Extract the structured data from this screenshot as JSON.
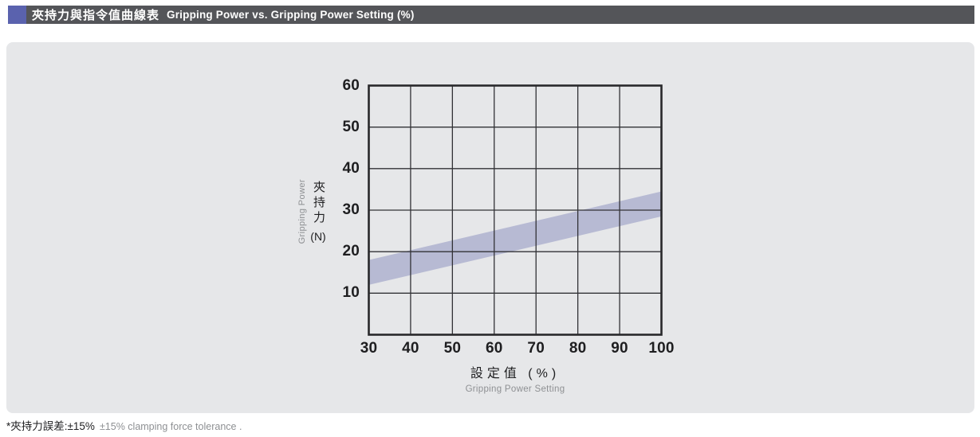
{
  "header": {
    "title_zh": "夾持力與指令值曲線表",
    "title_en": "Gripping Power vs. Gripping Power Setting (%)"
  },
  "footer": {
    "note_zh": "*夾持力誤差:±15%",
    "note_en": "±15% clamping force tolerance ."
  },
  "colors": {
    "header_bg": "#545559",
    "accent_square": "#5A62AE",
    "panel_bg": "#E6E7E9",
    "band": "#B7BAD3",
    "grid": "#323236",
    "border": "#28282B",
    "text_dark": "#1E1E20",
    "text_gray": "#8E9093"
  },
  "chart_data": {
    "type": "area",
    "title": "夾持力與指令值曲線表 Gripping Power vs. Gripping Power Setting (%)",
    "xlabel_zh": "設定值 (%)",
    "xlabel_en": "Gripping Power Setting",
    "ylabel_zh": "夾持力",
    "ylabel_en": "Gripping Power",
    "ylabel_unit": "(N)",
    "xlim": [
      30,
      100
    ],
    "ylim": [
      0,
      60
    ],
    "x_ticks": [
      30,
      40,
      50,
      60,
      70,
      80,
      90,
      100
    ],
    "y_ticks": [
      60,
      50,
      40,
      30,
      20,
      10
    ],
    "grid": true,
    "legend": false,
    "band": {
      "x": [
        30,
        100
      ],
      "lower": [
        12,
        28.5
      ],
      "upper": [
        18,
        34.5
      ]
    }
  }
}
